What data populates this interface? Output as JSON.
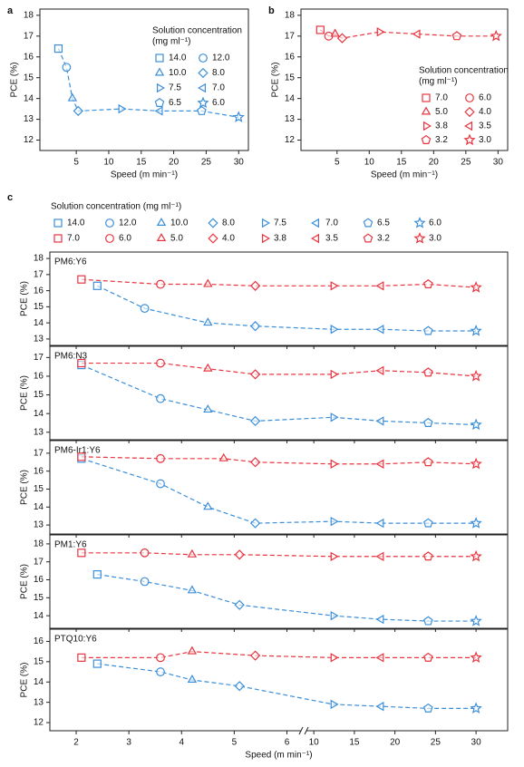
{
  "chart_data": [
    {
      "type": "line",
      "panel_label": "a",
      "xlabel": "Speed (m min⁻¹)",
      "ylabel": "PCE (%)",
      "xlim": [
        -0.6,
        31.5
      ],
      "xticks": [
        5,
        10,
        15,
        20,
        25,
        30
      ],
      "ylim": [
        11.5,
        18.3
      ],
      "yticks": [
        12,
        13,
        14,
        15,
        16,
        17,
        18
      ],
      "markers": [
        "square",
        "circle",
        "triangle-up",
        "diamond",
        "triangle-right",
        "triangle-left",
        "pentagon",
        "star"
      ],
      "legend_title": [
        "Solution concentration",
        "(mg ml⁻¹)"
      ],
      "series": [
        {
          "color": "#3b8fd9",
          "x": [
            2.25,
            3.5,
            4.4,
            5.3,
            11.9,
            17.9,
            24.3,
            30
          ],
          "values": [
            16.4,
            15.5,
            14.0,
            13.4,
            13.5,
            13.4,
            13.4,
            13.1
          ],
          "point_labels": [
            "14.0",
            "12.0",
            "10.0",
            "8.0",
            "7.5",
            "7.0",
            "6.5",
            "6.0"
          ]
        }
      ]
    },
    {
      "type": "line",
      "panel_label": "b",
      "xlabel": "Speed (m min⁻¹)",
      "ylabel": "PCE (%)",
      "xlim": [
        -0.6,
        31.5
      ],
      "xticks": [
        5,
        10,
        15,
        20,
        25,
        30
      ],
      "ylim": [
        11.5,
        18.3
      ],
      "yticks": [
        12,
        13,
        14,
        15,
        16,
        17,
        18
      ],
      "markers": [
        "square",
        "circle",
        "triangle-up",
        "diamond",
        "triangle-right",
        "triangle-left",
        "pentagon",
        "star"
      ],
      "legend_title": [
        "Solution concentration",
        "(mg ml⁻¹)"
      ],
      "series": [
        {
          "color": "#e8343f",
          "x": [
            2.4,
            3.7,
            4.7,
            5.8,
            11.6,
            17.5,
            23.6,
            29.7
          ],
          "values": [
            17.3,
            17.0,
            17.1,
            16.9,
            17.2,
            17.1,
            17.0,
            17.0
          ],
          "point_labels": [
            "7.0",
            "6.0",
            "5.0",
            "4.0",
            "3.8",
            "3.5",
            "3.2",
            "3.0"
          ]
        }
      ]
    },
    {
      "type": "line",
      "panel_label": "c",
      "title": "PM6:Y6",
      "ylabel": "PCE (%)",
      "xsegments": [
        {
          "xlim": [
            1.5,
            6.25
          ],
          "xticks": [
            2,
            3,
            4,
            5,
            6
          ]
        },
        {
          "xlim": [
            9.2,
            33.9
          ],
          "xticks": [
            10,
            15,
            20,
            25,
            30
          ]
        }
      ],
      "ylim": [
        12.6,
        18.4
      ],
      "yticks": [
        13,
        14,
        15,
        16,
        17,
        18
      ],
      "markers": [
        "square",
        "circle",
        "triangle-up",
        "diamond",
        "triangle-right",
        "triangle-left",
        "pentagon",
        "star"
      ],
      "legend_title": "Solution concentration (mg ml⁻¹)",
      "series": [
        {
          "color": "#3b8fd9",
          "x": [
            2.4,
            3.3,
            4.5,
            5.4,
            12.4,
            18.3,
            24.1,
            30
          ],
          "values": [
            16.3,
            14.9,
            14.0,
            13.8,
            13.6,
            13.6,
            13.5,
            13.5
          ],
          "point_labels": [
            "14.0",
            "12.0",
            "10.0",
            "8.0",
            "7.5",
            "7.0",
            "6.5",
            "6.0"
          ]
        },
        {
          "color": "#e8343f",
          "x": [
            2.1,
            3.6,
            4.5,
            5.4,
            12.4,
            18.3,
            24.1,
            30
          ],
          "values": [
            16.7,
            16.4,
            16.4,
            16.3,
            16.3,
            16.3,
            16.4,
            16.2
          ],
          "point_labels": [
            "7.0",
            "6.0",
            "5.0",
            "4.0",
            "3.8",
            "3.5",
            "3.2",
            "3.0"
          ]
        }
      ]
    },
    {
      "type": "line",
      "title": "PM6:N3",
      "ylabel": "PCE (%)",
      "xsegments": [
        {
          "xlim": [
            1.5,
            6.25
          ],
          "xticks": [
            2,
            3,
            4,
            5,
            6
          ]
        },
        {
          "xlim": [
            9.2,
            33.9
          ],
          "xticks": [
            10,
            15,
            20,
            25,
            30
          ]
        }
      ],
      "ylim": [
        12.6,
        17.6
      ],
      "yticks": [
        13,
        14,
        15,
        16,
        17
      ],
      "markers": [
        "square",
        "circle",
        "triangle-up",
        "diamond",
        "triangle-right",
        "triangle-left",
        "pentagon",
        "star"
      ],
      "series": [
        {
          "color": "#3b8fd9",
          "x": [
            2.1,
            3.6,
            4.5,
            5.4,
            12.4,
            18.3,
            24.1,
            30
          ],
          "values": [
            16.6,
            14.8,
            14.2,
            13.6,
            13.8,
            13.6,
            13.5,
            13.4
          ]
        },
        {
          "color": "#e8343f",
          "x": [
            2.1,
            3.6,
            4.5,
            5.4,
            12.4,
            18.3,
            24.1,
            30
          ],
          "values": [
            16.7,
            16.7,
            16.4,
            16.1,
            16.1,
            16.3,
            16.2,
            16.0
          ]
        }
      ]
    },
    {
      "type": "line",
      "title": "PM6-Ir1:Y6",
      "ylabel": "PCE (%)",
      "xsegments": [
        {
          "xlim": [
            1.5,
            6.25
          ],
          "xticks": [
            2,
            3,
            4,
            5,
            6
          ]
        },
        {
          "xlim": [
            9.2,
            33.9
          ],
          "xticks": [
            10,
            15,
            20,
            25,
            30
          ]
        }
      ],
      "ylim": [
        12.5,
        17.7
      ],
      "yticks": [
        13,
        14,
        15,
        16,
        17
      ],
      "markers": [
        "square",
        "circle",
        "triangle-up",
        "diamond",
        "triangle-right",
        "triangle-left",
        "pentagon",
        "star"
      ],
      "series": [
        {
          "color": "#3b8fd9",
          "x": [
            2.1,
            3.6,
            4.5,
            5.4,
            12.4,
            18.3,
            24.1,
            30
          ],
          "values": [
            16.7,
            15.3,
            14.0,
            13.1,
            13.2,
            13.1,
            13.1,
            13.1
          ]
        },
        {
          "color": "#e8343f",
          "x": [
            2.1,
            3.6,
            4.8,
            5.4,
            12.4,
            18.3,
            24.1,
            30
          ],
          "values": [
            16.8,
            16.7,
            16.7,
            16.5,
            16.4,
            16.4,
            16.5,
            16.4
          ]
        }
      ]
    },
    {
      "type": "line",
      "title": "PM1:Y6",
      "ylabel": "PCE (%)",
      "xsegments": [
        {
          "xlim": [
            1.5,
            6.25
          ],
          "xticks": [
            2,
            3,
            4,
            5,
            6
          ]
        },
        {
          "xlim": [
            9.2,
            33.9
          ],
          "xticks": [
            10,
            15,
            20,
            25,
            30
          ]
        }
      ],
      "ylim": [
        13.3,
        18.5
      ],
      "yticks": [
        14,
        15,
        16,
        17,
        18
      ],
      "markers": [
        "square",
        "circle",
        "triangle-up",
        "diamond",
        "triangle-right",
        "triangle-left",
        "pentagon",
        "star"
      ],
      "series": [
        {
          "color": "#3b8fd9",
          "x": [
            2.4,
            3.3,
            4.2,
            5.1,
            12.4,
            18.3,
            24.1,
            30
          ],
          "values": [
            16.3,
            15.9,
            15.4,
            14.6,
            14.0,
            13.8,
            13.7,
            13.7
          ]
        },
        {
          "color": "#e8343f",
          "x": [
            2.1,
            3.3,
            4.2,
            5.1,
            12.4,
            18.3,
            24.1,
            30
          ],
          "values": [
            17.5,
            17.5,
            17.4,
            17.4,
            17.3,
            17.3,
            17.3,
            17.3
          ]
        }
      ]
    },
    {
      "type": "line",
      "title": "PTQ10:Y6",
      "ylabel": "PCE (%)",
      "xlabel": "Speed (m min⁻¹)",
      "xsegments": [
        {
          "xlim": [
            1.5,
            6.25
          ],
          "xticks": [
            2,
            3,
            4,
            5,
            6
          ]
        },
        {
          "xlim": [
            9.2,
            33.9
          ],
          "xticks": [
            10,
            15,
            20,
            25,
            30
          ]
        }
      ],
      "ylim": [
        11.6,
        16.6
      ],
      "yticks": [
        12,
        13,
        14,
        15,
        16
      ],
      "markers": [
        "square",
        "circle",
        "triangle-up",
        "diamond",
        "triangle-right",
        "triangle-left",
        "pentagon",
        "star"
      ],
      "series": [
        {
          "color": "#3b8fd9",
          "x": [
            2.4,
            3.6,
            4.2,
            5.1,
            12.4,
            18.3,
            24.1,
            30
          ],
          "values": [
            14.9,
            14.5,
            14.1,
            13.8,
            12.9,
            12.8,
            12.7,
            12.7
          ]
        },
        {
          "color": "#e8343f",
          "x": [
            2.1,
            3.6,
            4.2,
            5.4,
            12.4,
            18.3,
            24.1,
            30
          ],
          "values": [
            15.2,
            15.2,
            15.5,
            15.3,
            15.2,
            15.2,
            15.2,
            15.2
          ]
        }
      ]
    }
  ]
}
